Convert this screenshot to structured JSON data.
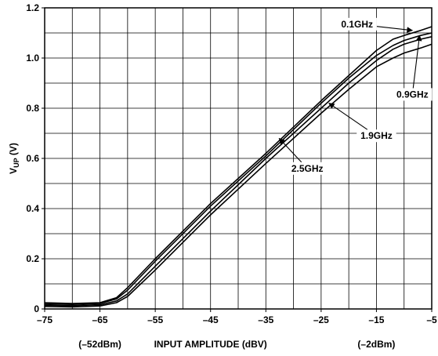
{
  "chart_data": {
    "type": "line",
    "title": "",
    "xlabel": "INPUT AMPLITUDE (dBV)",
    "ylabel": {
      "main": "V",
      "sub": "UP",
      "unit": " (V)"
    },
    "xlim": [
      -75,
      -5
    ],
    "ylim": [
      0,
      1.2
    ],
    "x_ticks": [
      -75,
      -65,
      -55,
      -45,
      -35,
      -25,
      -15,
      -5
    ],
    "x_tick_labels": [
      "–75",
      "–65",
      "–55",
      "–45",
      "–35",
      "–25",
      "–15",
      "–5"
    ],
    "y_ticks": [
      0,
      0.2,
      0.4,
      0.6,
      0.8,
      1.0,
      1.2
    ],
    "y_tick_labels": [
      "0",
      "0.2",
      "0.4",
      "0.6",
      "0.8",
      "1.0",
      "1.2"
    ],
    "x_minor_gridlines": [
      -70,
      -60,
      -50,
      -40,
      -30,
      -20,
      -10
    ],
    "y_minor_gridlines": [
      0.1,
      0.3,
      0.5,
      0.7,
      0.9,
      1.1
    ],
    "grid": true,
    "x_annotations": [
      {
        "text": "(–52dBm)",
        "at": -65
      },
      {
        "text": "(–2dBm)",
        "at": -15
      }
    ],
    "series": [
      {
        "name": "0.1GHz",
        "x": [
          -75,
          -70,
          -65,
          -62,
          -60,
          -55,
          -45,
          -35,
          -25,
          -20,
          -15,
          -12,
          -10,
          -7,
          -5
        ],
        "y": [
          0.025,
          0.022,
          0.025,
          0.045,
          0.085,
          0.2,
          0.42,
          0.62,
          0.83,
          0.93,
          1.03,
          1.075,
          1.09,
          1.11,
          1.125
        ]
      },
      {
        "name": "0.9GHz",
        "x": [
          -75,
          -70,
          -65,
          -62,
          -60,
          -55,
          -45,
          -35,
          -25,
          -20,
          -15,
          -12,
          -10,
          -7,
          -5
        ],
        "y": [
          0.02,
          0.018,
          0.022,
          0.04,
          0.075,
          0.19,
          0.41,
          0.61,
          0.82,
          0.92,
          1.01,
          1.05,
          1.07,
          1.09,
          1.1
        ]
      },
      {
        "name": "1.9GHz",
        "x": [
          -75,
          -70,
          -65,
          -62,
          -60,
          -55,
          -45,
          -35,
          -25,
          -20,
          -15,
          -12,
          -10,
          -7,
          -5
        ],
        "y": [
          0.015,
          0.013,
          0.017,
          0.032,
          0.06,
          0.17,
          0.39,
          0.6,
          0.8,
          0.9,
          0.99,
          1.035,
          1.055,
          1.075,
          1.085
        ]
      },
      {
        "name": "2.5GHz",
        "x": [
          -75,
          -70,
          -65,
          -62,
          -60,
          -55,
          -45,
          -35,
          -25,
          -20,
          -15,
          -12,
          -10,
          -7,
          -5
        ],
        "y": [
          0.01,
          0.008,
          0.012,
          0.025,
          0.05,
          0.155,
          0.375,
          0.58,
          0.78,
          0.875,
          0.965,
          1.0,
          1.02,
          1.04,
          1.055
        ]
      }
    ],
    "callouts": [
      {
        "text": "0.1GHz",
        "series": "0.1GHz",
        "label_at": [
          -18.5,
          1.135
        ],
        "arrow_to": [
          -8.5,
          1.11
        ]
      },
      {
        "text": "0.9GHz",
        "series": "0.9GHz",
        "label_at": [
          -8.5,
          0.855
        ],
        "arrow_to": [
          -7.2,
          1.09
        ]
      },
      {
        "text": "1.9GHz",
        "series": "1.9GHz",
        "label_at": [
          -15.0,
          0.69
        ],
        "arrow_to": [
          -23.6,
          0.82
        ]
      },
      {
        "text": "2.5GHz",
        "series": "2.5GHz",
        "label_at": [
          -27.5,
          0.56
        ],
        "arrow_to": [
          -32.6,
          0.68
        ]
      }
    ]
  }
}
